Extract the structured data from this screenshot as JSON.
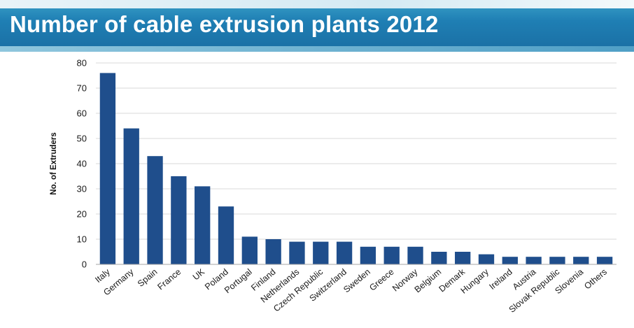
{
  "slide": {
    "title": "Number of cable extrusion plants 2012"
  },
  "chart_data": {
    "type": "bar",
    "title": "",
    "xlabel": "",
    "ylabel": "No. of Extruders",
    "ylim": [
      0,
      80
    ],
    "yticks": [
      0,
      10,
      20,
      30,
      40,
      50,
      60,
      70,
      80
    ],
    "grid": true,
    "bar_color": "#1f4e8c",
    "categories": [
      "Italy",
      "Germany",
      "Spain",
      "France",
      "UK",
      "Poland",
      "Portugal",
      "Finland",
      "Netherlands",
      "Czech Republic",
      "Switzerland",
      "Sweden",
      "Greece",
      "Norway",
      "Belgium",
      "Demark",
      "Hungary",
      "Ireland",
      "Austria",
      "Slovak Republic",
      "Slovenia",
      "Others"
    ],
    "values": [
      76,
      54,
      43,
      35,
      31,
      23,
      11,
      10,
      9,
      9,
      9,
      7,
      7,
      7,
      5,
      5,
      4,
      3,
      3,
      3,
      3,
      3
    ]
  }
}
